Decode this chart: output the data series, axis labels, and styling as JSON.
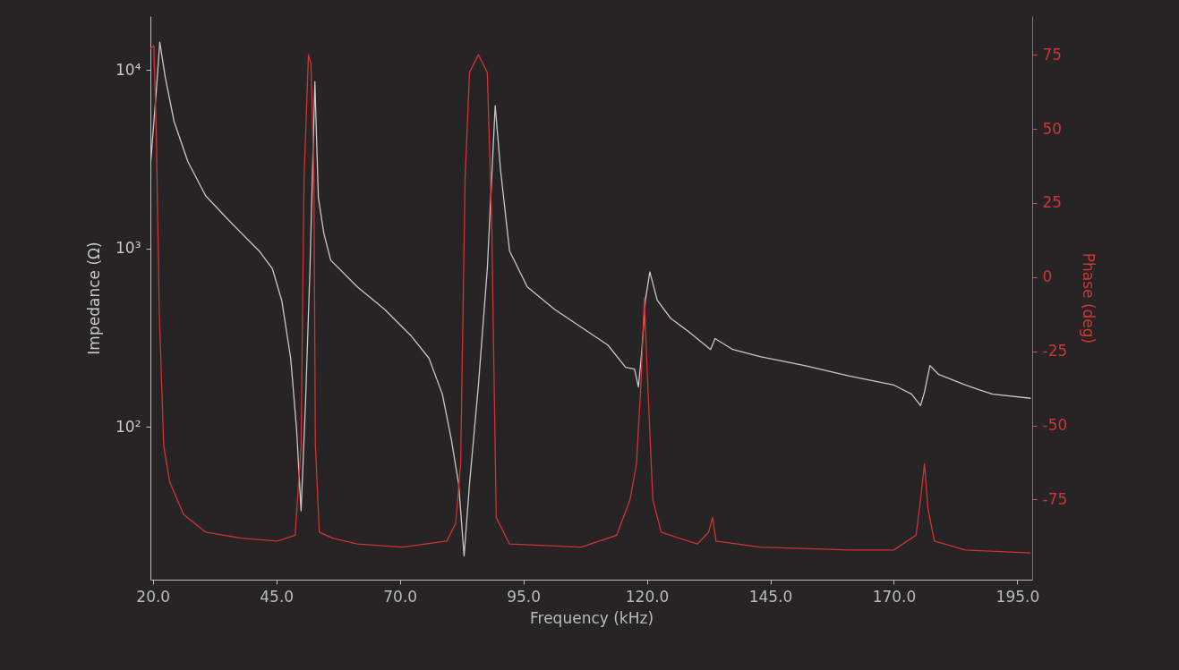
{
  "chart_data": {
    "type": "line",
    "xlabel": "Frequency (kHz)",
    "ylabel": "Impedance (Ω)",
    "y2label": "Phase (deg)",
    "log": "y",
    "grid": false,
    "marker": "none",
    "line_style": "solid",
    "xlim": [
      19.5,
      198
    ],
    "xticks": [
      {
        "value": 20,
        "label": "20.0"
      },
      {
        "value": 45,
        "label": "45.0"
      },
      {
        "value": 70,
        "label": "70.0"
      },
      {
        "value": 95,
        "label": "95.0"
      },
      {
        "value": 120,
        "label": "120.0"
      },
      {
        "value": 145,
        "label": "145.0"
      },
      {
        "value": 170,
        "label": "170.0"
      },
      {
        "value": 195,
        "label": "195.0"
      }
    ],
    "ylim": [
      14,
      20000
    ],
    "yticks": [
      {
        "value": 100,
        "label": "10²"
      },
      {
        "value": 1000,
        "label": "10³"
      },
      {
        "value": 10000,
        "label": "10⁴"
      }
    ],
    "y2lim": [
      -102,
      88
    ],
    "y2ticks": [
      -75,
      -50,
      -25,
      0,
      25,
      50,
      75
    ],
    "series": [
      {
        "color": "#c8c8c8",
        "x": [
          19.5,
          20.7,
          21.4,
          22.5,
          24.3,
          27.1,
          30.7,
          36.1,
          41.5,
          44.2,
          46.1,
          47.9,
          49.1,
          50.0,
          50.9,
          51.8,
          52.8,
          53.5,
          54.6,
          56.0,
          61.4,
          66.9,
          72.3,
          75.9,
          78.6,
          80.4,
          81.9,
          83.0,
          84.1,
          85.9,
          87.7,
          89.3,
          90.4,
          92.2,
          95.8,
          101.3,
          106.7,
          112.1,
          115.7,
          117.5,
          118.3,
          119.0,
          119.7,
          120.6,
          122.1,
          124.8,
          128.4,
          132.9,
          133.8,
          137.4,
          142.9,
          151.9,
          161.0,
          170.0,
          173.6,
          175.4,
          176.2,
          177.3,
          179.1,
          184.5,
          187.2,
          190.0,
          197.7
        ],
        "values": [
          2880,
          7670,
          14300,
          9120,
          5130,
          3060,
          1970,
          1370,
          970,
          770,
          510,
          243,
          97,
          34,
          136,
          770,
          8600,
          1930,
          1220,
          860,
          610,
          457,
          324,
          243,
          153,
          86,
          48,
          19,
          48,
          172,
          770,
          6300,
          2720,
          970,
          610,
          457,
          363,
          288,
          216,
          211,
          168,
          272,
          513,
          741,
          513,
          407,
          343,
          272,
          313,
          272,
          248,
          221,
          193,
          172,
          153,
          132,
          157,
          221,
          197,
          172,
          162,
          153,
          145
        ]
      },
      {
        "color": "#d03434",
        "axis": "y2",
        "x": [
          19.5,
          20.2,
          20.7,
          21.3,
          22.2,
          23.4,
          26.2,
          30.7,
          37.9,
          45.2,
          48.8,
          50.0,
          50.6,
          51.5,
          52.0,
          52.6,
          52.9,
          53.7,
          56.4,
          61.4,
          70.5,
          79.5,
          81.3,
          82.3,
          83.2,
          84.1,
          85.9,
          87.7,
          88.6,
          89.5,
          92.2,
          106.7,
          113.9,
          116.6,
          117.9,
          118.8,
          119.5,
          120.1,
          121.2,
          122.9,
          130.2,
          132.5,
          133.3,
          134.0,
          142.9,
          161.0,
          170.0,
          174.5,
          175.4,
          176.2,
          176.9,
          178.2,
          184.5,
          197.7
        ],
        "values": [
          77,
          78,
          48,
          -12,
          -57,
          -69,
          -80,
          -86,
          -88,
          -89,
          -87,
          -57,
          33,
          75,
          72,
          33,
          -57,
          -86,
          -88,
          -90,
          -91,
          -89,
          -83,
          -63,
          33,
          69,
          75,
          69,
          18,
          -81,
          -90,
          -91,
          -87,
          -75,
          -63,
          -36,
          -7,
          -33,
          -75,
          -86,
          -90,
          -86,
          -81,
          -89,
          -91,
          -92,
          -92,
          -87,
          -75,
          -63,
          -78,
          -89,
          -92,
          -93
        ]
      }
    ]
  }
}
